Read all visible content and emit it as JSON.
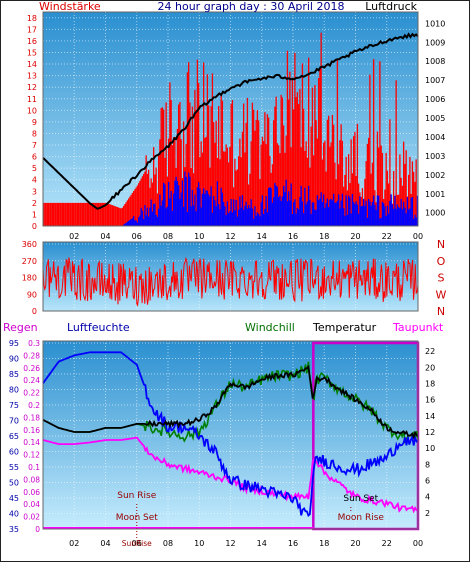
{
  "chart_data": [
    {
      "type": "bar",
      "title": "24 hour graph day : 30 April 2018",
      "ylabel": "Windstärke",
      "y2label": "Luftdruck",
      "ylim": [
        0,
        18.5
      ],
      "y2lim": [
        999.3,
        1010.6
      ],
      "yticks": [
        0,
        1,
        2,
        3,
        4,
        5,
        6,
        7,
        8,
        9,
        10,
        11,
        12,
        13,
        14,
        15,
        16,
        17,
        18
      ],
      "y2ticks": [
        1000,
        1001,
        1002,
        1003,
        1004,
        1005,
        1006,
        1007,
        1008,
        1009,
        1010
      ],
      "xlim": [
        0,
        24
      ],
      "xticks": [
        "02",
        "04",
        "06",
        "08",
        "10",
        "12",
        "14",
        "16",
        "18",
        "20",
        "22",
        "00"
      ],
      "series": [
        {
          "name": "Luftdruck",
          "color": "#000000",
          "x": [
            0,
            1,
            2,
            3,
            3.5,
            4,
            5,
            6,
            7,
            8,
            9,
            10,
            11,
            12,
            13,
            14,
            15,
            16,
            17,
            18,
            19,
            20,
            21,
            22,
            23,
            24
          ],
          "y": [
            1002.9,
            1002.1,
            1001.3,
            1000.5,
            1000.2,
            1000.4,
            1001.2,
            1002.0,
            1002.8,
            1003.5,
            1004.4,
            1005.5,
            1006.1,
            1006.6,
            1006.9,
            1007.1,
            1007.2,
            1007.1,
            1007.3,
            1007.7,
            1008.1,
            1008.5,
            1008.8,
            1009.1,
            1009.3,
            1009.4
          ]
        },
        {
          "name": "Windstärke (Böen)",
          "color": "#ff0000",
          "x": [
            0,
            1,
            2,
            3,
            4,
            5,
            6,
            7,
            8,
            9,
            10,
            11,
            12,
            13,
            14,
            15,
            16,
            17,
            18,
            19,
            20,
            21,
            22,
            23,
            24
          ],
          "y": [
            2,
            2,
            2,
            2,
            2,
            1.5,
            3.5,
            6,
            10,
            12,
            11,
            11,
            9,
            9,
            8,
            10,
            11,
            12,
            10,
            7,
            7,
            6,
            5,
            6,
            5
          ]
        },
        {
          "name": "Windstärke (Mittel)",
          "color": "#0000ff",
          "x": [
            0,
            1,
            2,
            3,
            4,
            5,
            6,
            7,
            8,
            9,
            10,
            11,
            12,
            13,
            14,
            15,
            16,
            17,
            18,
            19,
            20,
            21,
            22,
            23,
            24
          ],
          "y": [
            0,
            0,
            0,
            0,
            0,
            0,
            1,
            2,
            3,
            3.5,
            3,
            3,
            2,
            2,
            2,
            3,
            3,
            2.5,
            2,
            2,
            2,
            2,
            2,
            2,
            2
          ]
        }
      ]
    },
    {
      "type": "line",
      "ylim": [
        0,
        360
      ],
      "yticks": [
        0,
        90,
        180,
        270,
        360
      ],
      "y2ticks": [
        "N",
        "W",
        "S",
        "O",
        "N"
      ],
      "xlim": [
        0,
        24
      ],
      "series": [
        {
          "name": "Windrichtung",
          "color": "#ff0000",
          "x": [
            0,
            2,
            4,
            6,
            8,
            10,
            12,
            14,
            16,
            18,
            20,
            22,
            24
          ],
          "y": [
            190,
            170,
            150,
            140,
            160,
            175,
            170,
            180,
            165,
            170,
            175,
            160,
            170
          ]
        }
      ]
    },
    {
      "type": "line",
      "left_axes": {
        "Regen": {
          "ylim": [
            0,
            0.3
          ],
          "ticks": [
            0,
            0.02,
            0.04,
            0.06,
            0.08,
            0.1,
            0.12,
            0.14,
            0.16,
            0.18,
            0.2,
            0.22,
            0.24,
            0.26,
            0.28,
            0.3
          ]
        },
        "Luftfeuchte": {
          "ylim": [
            35,
            95
          ],
          "ticks": [
            35,
            40,
            45,
            50,
            55,
            60,
            65,
            70,
            75,
            80,
            85,
            90,
            95
          ]
        }
      },
      "y2lim": [
        0,
        23
      ],
      "y2ticks": [
        2,
        4,
        6,
        8,
        10,
        12,
        14,
        16,
        18,
        20,
        22
      ],
      "xlim": [
        0,
        24
      ],
      "xticks": [
        "02",
        "04",
        "06",
        "08",
        "10",
        "12",
        "14",
        "16",
        "18",
        "20",
        "22",
        "00"
      ],
      "legend": [
        "Regen",
        "Luftfeuchte",
        "Windchill",
        "Temperatur",
        "Taupunkt"
      ],
      "series": [
        {
          "name": "Luftfeuchte",
          "color": "#0000ff",
          "axis": "Luftfeuchte",
          "x": [
            0,
            1,
            2,
            3,
            4,
            5,
            6,
            7,
            8,
            9,
            10,
            11,
            12,
            13,
            14,
            15,
            16,
            17,
            17.3,
            17.5,
            18,
            19,
            20,
            21,
            22,
            23,
            24
          ],
          "y": [
            82,
            89,
            91,
            92,
            92,
            92,
            88,
            74,
            68,
            68,
            65,
            60,
            51,
            49,
            48,
            46,
            45,
            38,
            52,
            58,
            57,
            55,
            54,
            56,
            58,
            64,
            62
          ]
        },
        {
          "name": "Temperatur",
          "color": "#000000",
          "axis": "right",
          "x": [
            0,
            1,
            2,
            3,
            4,
            5,
            6,
            7,
            8,
            9,
            10,
            11,
            12,
            13,
            14,
            15,
            16,
            17,
            17.3,
            17.5,
            18,
            19,
            20,
            21,
            22,
            23,
            24
          ],
          "y": [
            13.5,
            12.5,
            12,
            12,
            12.5,
            12.5,
            13,
            13,
            13,
            13,
            13.5,
            15,
            18,
            17.5,
            18.5,
            19,
            19,
            20,
            15.8,
            18.5,
            18.7,
            17.2,
            16,
            14.7,
            12.5,
            11.8,
            11.6
          ]
        },
        {
          "name": "Windchill",
          "color": "#008000",
          "axis": "right",
          "x": [
            0,
            1,
            2,
            3,
            4,
            5,
            6,
            7,
            8,
            9,
            10,
            11,
            12,
            13,
            14,
            15,
            16,
            17,
            17.3,
            17.5,
            18,
            19,
            20,
            21,
            22,
            23,
            24
          ],
          "y": [
            13.5,
            12.5,
            12,
            12,
            12.5,
            12.5,
            13,
            12.5,
            12,
            11.5,
            12,
            15,
            18,
            17.5,
            18.5,
            19,
            19,
            20,
            15.8,
            18.5,
            18.7,
            17.2,
            16,
            14.7,
            12.5,
            11.5,
            11.4
          ]
        },
        {
          "name": "Taupunkt",
          "color": "#ff00ff",
          "axis": "right",
          "x": [
            0,
            1,
            2,
            3,
            4,
            5,
            6,
            7,
            8,
            9,
            10,
            11,
            12,
            13,
            14,
            15,
            16,
            17,
            17.3,
            17.5,
            18,
            19,
            20,
            21,
            22,
            23,
            24
          ],
          "y": [
            11,
            10.5,
            10.5,
            10.7,
            11,
            11,
            11.3,
            9,
            8,
            7.5,
            7,
            6.5,
            6,
            5,
            4.7,
            4.3,
            4,
            4,
            9,
            8.5,
            7,
            5.5,
            4,
            3.5,
            3.2,
            2.5,
            2.3
          ]
        }
      ],
      "annotations": [
        {
          "label": "Sun Rise",
          "x": 6.0
        },
        {
          "label": "Moon Set",
          "x": 6.0
        },
        {
          "label": "SunRise",
          "x": 6.0
        },
        {
          "label": "Sun Set",
          "x": 19.7
        },
        {
          "label": "Moon Rise",
          "x": 19.7
        }
      ],
      "highlight_x": [
        17.3,
        24
      ]
    }
  ]
}
